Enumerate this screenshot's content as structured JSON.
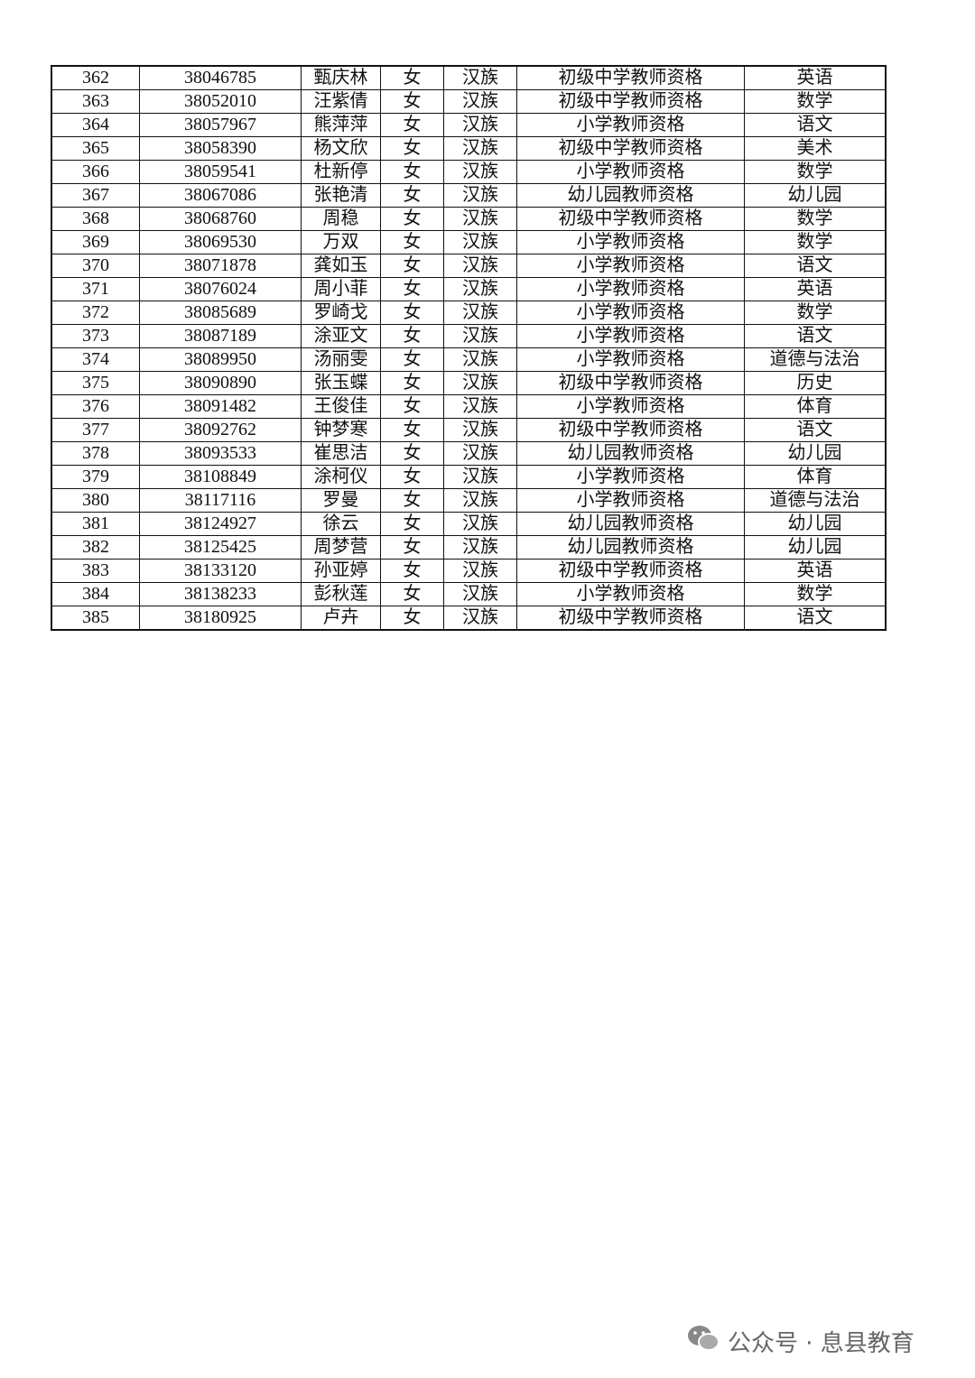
{
  "rows": [
    [
      "362",
      "38046785",
      "甄庆林",
      "女",
      "汉族",
      "初级中学教师资格",
      "英语"
    ],
    [
      "363",
      "38052010",
      "汪紫倩",
      "女",
      "汉族",
      "初级中学教师资格",
      "数学"
    ],
    [
      "364",
      "38057967",
      "熊萍萍",
      "女",
      "汉族",
      "小学教师资格",
      "语文"
    ],
    [
      "365",
      "38058390",
      "杨文欣",
      "女",
      "汉族",
      "初级中学教师资格",
      "美术"
    ],
    [
      "366",
      "38059541",
      "杜新停",
      "女",
      "汉族",
      "小学教师资格",
      "数学"
    ],
    [
      "367",
      "38067086",
      "张艳清",
      "女",
      "汉族",
      "幼儿园教师资格",
      "幼儿园"
    ],
    [
      "368",
      "38068760",
      "周稳",
      "女",
      "汉族",
      "初级中学教师资格",
      "数学"
    ],
    [
      "369",
      "38069530",
      "万双",
      "女",
      "汉族",
      "小学教师资格",
      "数学"
    ],
    [
      "370",
      "38071878",
      "龚如玉",
      "女",
      "汉族",
      "小学教师资格",
      "语文"
    ],
    [
      "371",
      "38076024",
      "周小菲",
      "女",
      "汉族",
      "小学教师资格",
      "英语"
    ],
    [
      "372",
      "38085689",
      "罗崎戈",
      "女",
      "汉族",
      "小学教师资格",
      "数学"
    ],
    [
      "373",
      "38087189",
      "涂亚文",
      "女",
      "汉族",
      "小学教师资格",
      "语文"
    ],
    [
      "374",
      "38089950",
      "汤丽雯",
      "女",
      "汉族",
      "小学教师资格",
      "道德与法治"
    ],
    [
      "375",
      "38090890",
      "张玉蝶",
      "女",
      "汉族",
      "初级中学教师资格",
      "历史"
    ],
    [
      "376",
      "38091482",
      "王俊佳",
      "女",
      "汉族",
      "小学教师资格",
      "体育"
    ],
    [
      "377",
      "38092762",
      "钟梦寒",
      "女",
      "汉族",
      "初级中学教师资格",
      "语文"
    ],
    [
      "378",
      "38093533",
      "崔思洁",
      "女",
      "汉族",
      "幼儿园教师资格",
      "幼儿园"
    ],
    [
      "379",
      "38108849",
      "涂柯仪",
      "女",
      "汉族",
      "小学教师资格",
      "体育"
    ],
    [
      "380",
      "38117116",
      "罗曼",
      "女",
      "汉族",
      "小学教师资格",
      "道德与法治"
    ],
    [
      "381",
      "38124927",
      "徐云",
      "女",
      "汉族",
      "幼儿园教师资格",
      "幼儿园"
    ],
    [
      "382",
      "38125425",
      "周梦营",
      "女",
      "汉族",
      "幼儿园教师资格",
      "幼儿园"
    ],
    [
      "383",
      "38133120",
      "孙亚婷",
      "女",
      "汉族",
      "初级中学教师资格",
      "英语"
    ],
    [
      "384",
      "38138233",
      "彭秋莲",
      "女",
      "汉族",
      "小学教师资格",
      "数学"
    ],
    [
      "385",
      "38180925",
      "卢卉",
      "女",
      "汉族",
      "初级中学教师资格",
      "语文"
    ]
  ],
  "watermark": {
    "icon": "wechat-icon",
    "text": "公众号 · 息县教育"
  }
}
